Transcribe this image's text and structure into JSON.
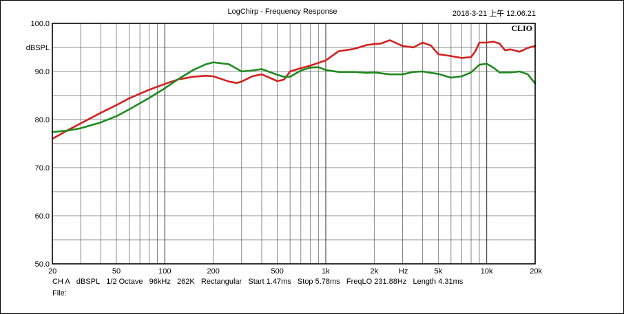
{
  "window": {
    "title": "LogChirp - Frequency Response",
    "datetime": "2018-3-21 上午 12.06.21",
    "brand": "CLIO"
  },
  "footer": {
    "channel": "CH A",
    "unit": "dBSPL",
    "smoothing": "1/2 Octave",
    "sample_rate": "96kHz",
    "size": "262K",
    "window": "Rectangular",
    "start": "Start 1.47ms",
    "stop": "Stop 5.78ms",
    "freqlo": "FreqLO 231.88Hz",
    "length": "Length 4.31ms",
    "file_label": "File:"
  },
  "chart_data": {
    "type": "line",
    "title": "LogChirp - Frequency Response",
    "xlabel": "Hz",
    "ylabel": "dBSPL",
    "x_scale": "log",
    "xlim": [
      20,
      20000
    ],
    "ylim": [
      50,
      100
    ],
    "grid": true,
    "x_ticks": [
      {
        "v": 20,
        "label": "20"
      },
      {
        "v": 50,
        "label": "50"
      },
      {
        "v": 100,
        "label": "100"
      },
      {
        "v": 200,
        "label": "200"
      },
      {
        "v": 500,
        "label": "500"
      },
      {
        "v": 1000,
        "label": "1k"
      },
      {
        "v": 2000,
        "label": "2k"
      },
      {
        "v": 5000,
        "label": "5k"
      },
      {
        "v": 10000,
        "label": "10k"
      },
      {
        "v": 20000,
        "label": "20k"
      }
    ],
    "y_ticks": [
      {
        "v": 100,
        "label": "100.0"
      },
      {
        "v": 90,
        "label": "90.0"
      },
      {
        "v": 80,
        "label": "80.0"
      },
      {
        "v": 70,
        "label": "70.0"
      },
      {
        "v": 60,
        "label": "60.0"
      },
      {
        "v": 50,
        "label": "50.0"
      }
    ],
    "series": [
      {
        "color": "#d42020",
        "x": [
          20,
          25,
          30,
          40,
          50,
          60,
          80,
          100,
          120,
          150,
          180,
          200,
          250,
          280,
          300,
          350,
          400,
          500,
          550,
          600,
          700,
          800,
          1000,
          1200,
          1500,
          1800,
          2000,
          2200,
          2500,
          3000,
          3500,
          4000,
          4500,
          5000,
          6000,
          7000,
          8000,
          8500,
          9000,
          10000,
          11000,
          12000,
          13000,
          14000,
          16000,
          18000,
          20000
        ],
        "y": [
          76.0,
          77.8,
          79.2,
          81.4,
          83.0,
          84.4,
          86.2,
          87.4,
          88.3,
          88.9,
          89.1,
          89.0,
          87.9,
          87.6,
          87.9,
          89.0,
          89.4,
          88.0,
          88.3,
          90.0,
          90.7,
          91.2,
          92.3,
          94.2,
          94.7,
          95.5,
          95.7,
          95.8,
          96.5,
          95.3,
          95.0,
          96.0,
          95.4,
          93.6,
          93.2,
          92.8,
          93.0,
          94.2,
          96.0,
          96.0,
          96.2,
          95.8,
          94.4,
          94.6,
          94.1,
          94.9,
          95.3
        ]
      },
      {
        "color": "#1e8a1e",
        "x": [
          20,
          25,
          30,
          40,
          50,
          60,
          80,
          100,
          120,
          150,
          180,
          200,
          250,
          300,
          350,
          400,
          500,
          550,
          600,
          700,
          800,
          900,
          1000,
          1200,
          1500,
          1800,
          2000,
          2500,
          3000,
          3500,
          4000,
          4500,
          5000,
          6000,
          7000,
          8000,
          9000,
          10000,
          11000,
          12000,
          14000,
          16000,
          18000,
          20000
        ],
        "y": [
          77.4,
          77.7,
          78.2,
          79.4,
          80.7,
          82.1,
          84.5,
          86.5,
          88.3,
          90.3,
          91.5,
          91.9,
          91.5,
          90.0,
          90.2,
          90.5,
          89.3,
          88.9,
          88.9,
          90.2,
          90.8,
          90.9,
          90.3,
          89.9,
          89.9,
          89.7,
          89.8,
          89.4,
          89.4,
          89.9,
          90.0,
          89.7,
          89.5,
          88.7,
          89.0,
          89.8,
          91.4,
          91.6,
          90.8,
          89.8,
          89.8,
          90.0,
          89.4,
          87.5
        ]
      }
    ]
  }
}
